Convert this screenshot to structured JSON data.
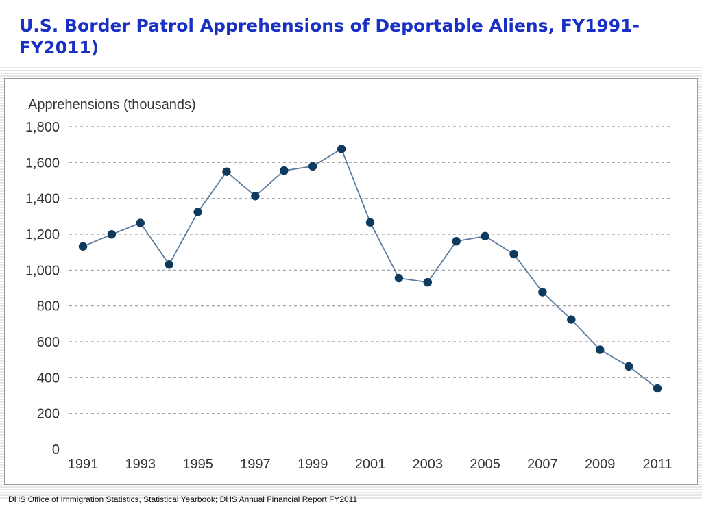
{
  "slide": {
    "title": "U.S. Border Patrol Apprehensions of Deportable Aliens, FY1991-FY2011)",
    "source": "DHS Office of Immigration Statistics, Statistical Yearbook; DHS Annual Financial Report FY2011"
  },
  "colors": {
    "title": "#1a2fc4",
    "line": "#5a7aa0",
    "marker": "#0e3a5e",
    "grid": "#9a9a9a",
    "axis_text": "#333333"
  },
  "chart_data": {
    "type": "line",
    "title": "",
    "ylabel": "Apprehensions (thousands)",
    "xlabel": "",
    "x": [
      1991,
      1992,
      1993,
      1994,
      1995,
      1996,
      1997,
      1998,
      1999,
      2000,
      2001,
      2002,
      2003,
      2004,
      2005,
      2006,
      2007,
      2008,
      2009,
      2010,
      2011
    ],
    "x_tick_labels": [
      "1991",
      "1993",
      "1995",
      "1997",
      "1999",
      "2001",
      "2003",
      "2005",
      "2007",
      "2009",
      "2011"
    ],
    "y_tick_labels": [
      "0",
      "200",
      "400",
      "600",
      "800",
      "1,000",
      "1,200",
      "1,400",
      "1,600",
      "1,800"
    ],
    "ylim": [
      0,
      1800
    ],
    "y_ticks": [
      0,
      200,
      400,
      600,
      800,
      1000,
      1200,
      1400,
      1600,
      1800
    ],
    "grid": "horizontal dashed",
    "series": [
      {
        "values": [
          1132,
          1199,
          1263,
          1031,
          1324,
          1549,
          1413,
          1555,
          1579,
          1676,
          1266,
          955,
          932,
          1161,
          1189,
          1089,
          877,
          724,
          556,
          463,
          340
        ]
      }
    ]
  }
}
